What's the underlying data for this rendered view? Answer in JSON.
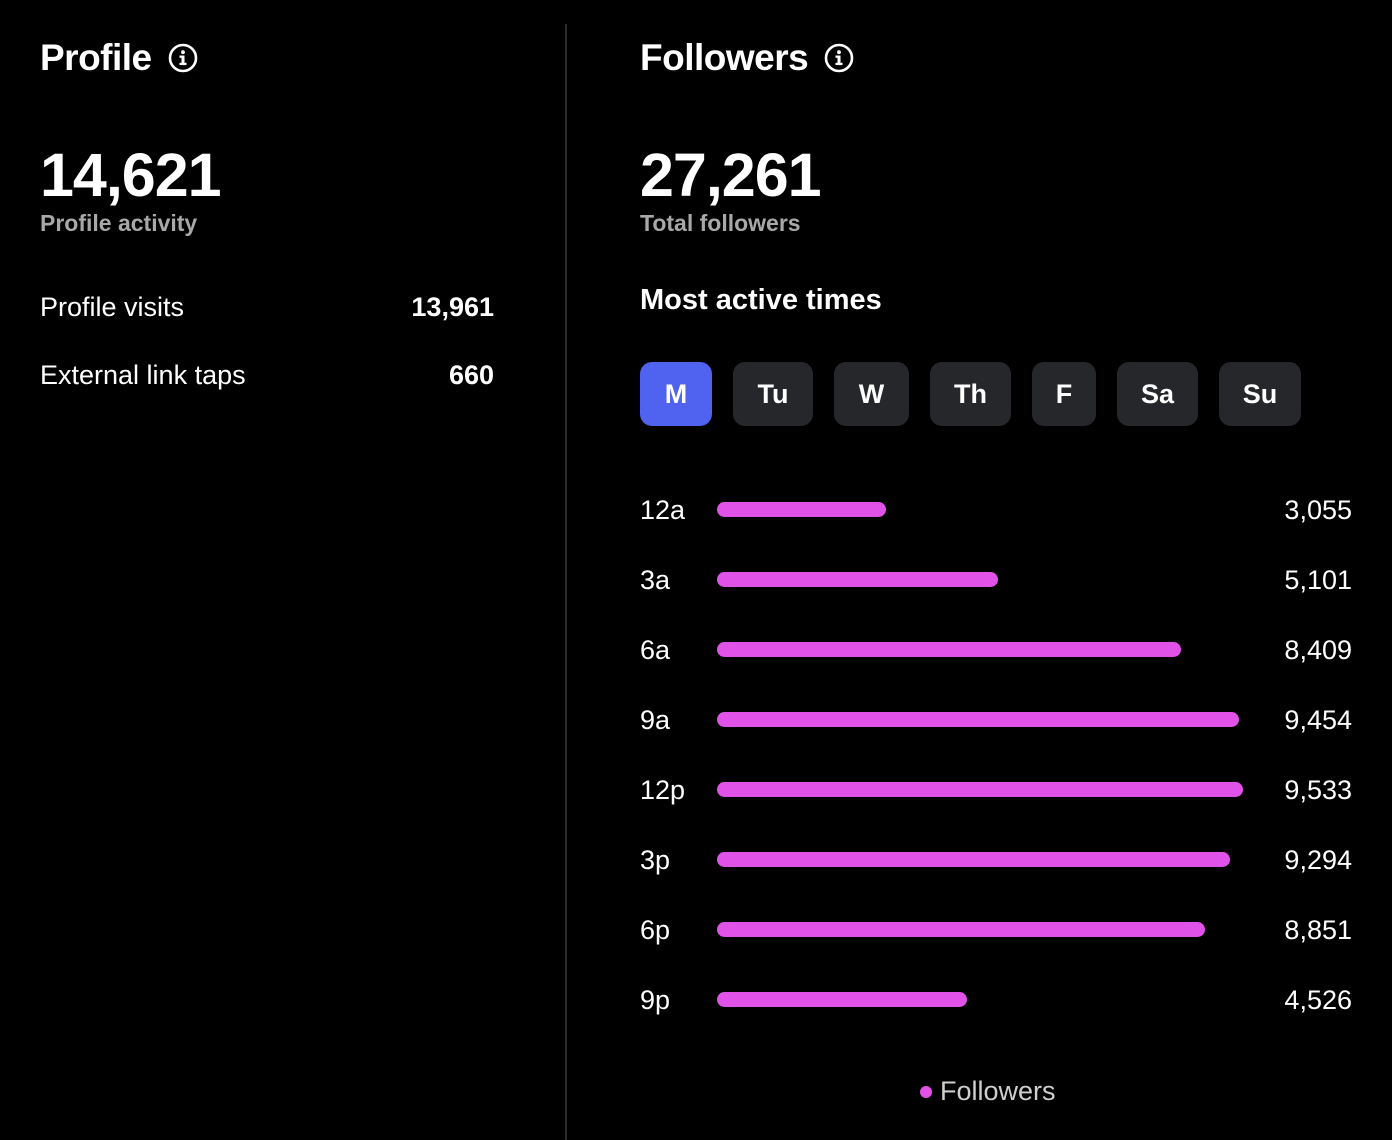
{
  "profile": {
    "title": "Profile",
    "info_icon": "info-circle-icon",
    "total": "14,621",
    "total_caption": "Profile activity",
    "stats": [
      {
        "label": "Profile visits",
        "value": "13,961"
      },
      {
        "label": "External link taps",
        "value": "660"
      }
    ]
  },
  "followers": {
    "title": "Followers",
    "info_icon": "info-circle-icon",
    "total": "27,261",
    "total_caption": "Total followers",
    "most_active_title": "Most active times",
    "days": [
      "M",
      "Tu",
      "W",
      "Th",
      "F",
      "Sa",
      "Su"
    ],
    "selected_day": "M",
    "colors": {
      "active_tab": "#4f63f0",
      "tab": "#26272b",
      "bar": "#e152e8"
    }
  },
  "chart_data": {
    "type": "bar",
    "orientation": "horizontal",
    "categories": [
      "12a",
      "3a",
      "6a",
      "9a",
      "12p",
      "3p",
      "6p",
      "9p"
    ],
    "series": [
      {
        "name": "Followers",
        "values": [
          3055,
          5101,
          8409,
          9454,
          9533,
          9294,
          8851,
          4526
        ],
        "labels": [
          "3,055",
          "5,101",
          "8,409",
          "9,454",
          "9,533",
          "9,294",
          "8,851",
          "4,526"
        ],
        "color": "#e152e8"
      }
    ],
    "xlim": [
      0,
      9533
    ],
    "grid": false,
    "legend": "bottom-center"
  }
}
